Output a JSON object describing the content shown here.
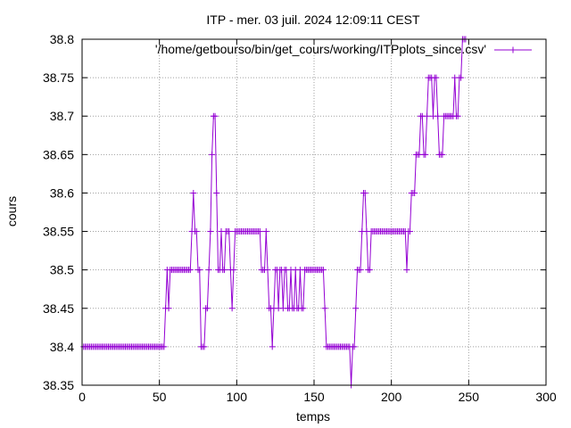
{
  "chart_data": {
    "type": "line",
    "title": "ITP - mer. 03 juil. 2024 12:09:11 CEST",
    "xlabel": "temps",
    "ylabel": "cours",
    "xlim": [
      0,
      300
    ],
    "ylim": [
      38.35,
      38.8
    ],
    "grid": true,
    "legend_position": "top-right",
    "x_ticks": [
      "0",
      "50",
      "100",
      "150",
      "200",
      "250",
      "300"
    ],
    "y_ticks": [
      "38.35",
      "38.4",
      "38.45",
      "38.5",
      "38.55",
      "38.6",
      "38.65",
      "38.7",
      "38.75",
      "38.8"
    ],
    "series": [
      {
        "name": "'/home/getbourso/bin/get_cours/working/ITPplots_since.csv'",
        "color": "#9400d3",
        "values": [
          38.4,
          38.4,
          38.4,
          38.4,
          38.4,
          38.4,
          38.4,
          38.4,
          38.4,
          38.4,
          38.4,
          38.4,
          38.4,
          38.4,
          38.4,
          38.4,
          38.4,
          38.4,
          38.4,
          38.4,
          38.4,
          38.4,
          38.4,
          38.4,
          38.4,
          38.4,
          38.4,
          38.4,
          38.4,
          38.4,
          38.4,
          38.4,
          38.4,
          38.4,
          38.4,
          38.4,
          38.4,
          38.4,
          38.4,
          38.4,
          38.4,
          38.4,
          38.4,
          38.4,
          38.4,
          38.4,
          38.4,
          38.4,
          38.4,
          38.4,
          38.4,
          38.4,
          38.4,
          38.45,
          38.5,
          38.45,
          38.5,
          38.5,
          38.5,
          38.5,
          38.5,
          38.5,
          38.5,
          38.5,
          38.5,
          38.5,
          38.5,
          38.5,
          38.5,
          38.5,
          38.55,
          38.6,
          38.55,
          38.55,
          38.5,
          38.5,
          38.4,
          38.4,
          38.4,
          38.45,
          38.45,
          38.5,
          38.55,
          38.65,
          38.7,
          38.7,
          38.6,
          38.5,
          38.5,
          38.55,
          38.5,
          38.5,
          38.55,
          38.55,
          38.55,
          38.5,
          38.45,
          38.5,
          38.55,
          38.55,
          38.55,
          38.55,
          38.55,
          38.55,
          38.55,
          38.55,
          38.55,
          38.55,
          38.55,
          38.55,
          38.55,
          38.55,
          38.55,
          38.55,
          38.55,
          38.5,
          38.5,
          38.5,
          38.55,
          38.5,
          38.45,
          38.45,
          38.4,
          38.45,
          38.5,
          38.5,
          38.45,
          38.5,
          38.5,
          38.45,
          38.5,
          38.5,
          38.45,
          38.45,
          38.5,
          38.45,
          38.45,
          38.5,
          38.45,
          38.45,
          38.5,
          38.45,
          38.45,
          38.5,
          38.5,
          38.5,
          38.5,
          38.5,
          38.5,
          38.5,
          38.5,
          38.5,
          38.5,
          38.5,
          38.5,
          38.5,
          38.45,
          38.4,
          38.4,
          38.4,
          38.4,
          38.4,
          38.4,
          38.4,
          38.4,
          38.4,
          38.4,
          38.4,
          38.4,
          38.4,
          38.4,
          38.4,
          38.4,
          38.35,
          38.4,
          38.4,
          38.45,
          38.5,
          38.5,
          38.5,
          38.55,
          38.6,
          38.6,
          38.55,
          38.5,
          38.5,
          38.55,
          38.55,
          38.55,
          38.55,
          38.55,
          38.55,
          38.55,
          38.55,
          38.55,
          38.55,
          38.55,
          38.55,
          38.55,
          38.55,
          38.55,
          38.55,
          38.55,
          38.55,
          38.55,
          38.55,
          38.55,
          38.55,
          38.55,
          38.5,
          38.55,
          38.55,
          38.6,
          38.6,
          38.6,
          38.65,
          38.65,
          38.65,
          38.7,
          38.7,
          38.65,
          38.65,
          38.7,
          38.75,
          38.75,
          38.75,
          38.7,
          38.75,
          38.75,
          38.7,
          38.65,
          38.65,
          38.65,
          38.7,
          38.7,
          38.7,
          38.7,
          38.7,
          38.7,
          38.7,
          38.75,
          38.7,
          38.7,
          38.75,
          38.75,
          38.8,
          38.8,
          38.8
        ]
      }
    ]
  }
}
